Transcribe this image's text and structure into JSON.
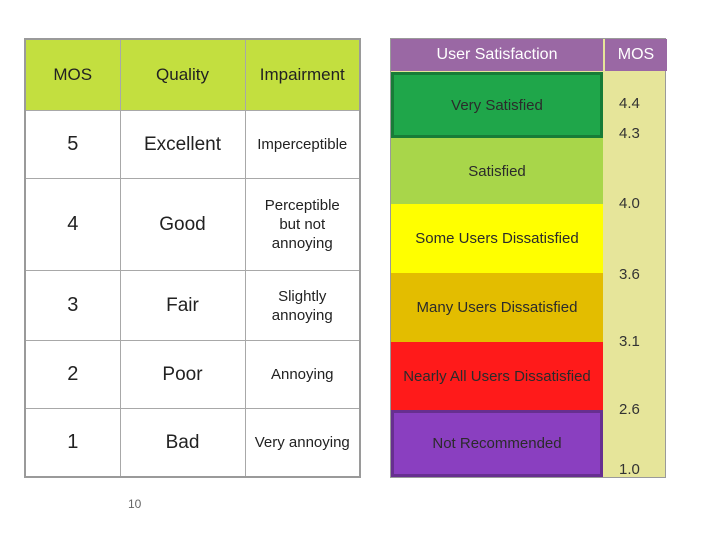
{
  "mos_table": {
    "headers": {
      "mos": "MOS",
      "quality": "Quality",
      "impairment": "Impairment"
    },
    "rows": [
      {
        "mos": "5",
        "quality": "Excellent",
        "impairment": "Imperceptible"
      },
      {
        "mos": "4",
        "quality": "Good",
        "impairment": "Perceptible but not annoying"
      },
      {
        "mos": "3",
        "quality": "Fair",
        "impairment": "Slightly annoying"
      },
      {
        "mos": "2",
        "quality": "Poor",
        "impairment": "Annoying"
      },
      {
        "mos": "1",
        "quality": "Bad",
        "impairment": "Very annoying"
      }
    ],
    "colors": {
      "header": "#c3df3f",
      "cell": "#ffffff"
    }
  },
  "satisfaction_scale": {
    "header_label": "User  Satisfaction",
    "header_mos": "MOS",
    "bands": [
      {
        "label": "Very Satisfied",
        "color": "#1fa64a"
      },
      {
        "label": "Satisfied",
        "color": "#a8d64a"
      },
      {
        "label": "Some Users Dissatisfied",
        "color": "#ffff00"
      },
      {
        "label": "Many Users Dissatisfied",
        "color": "#e3bd00"
      },
      {
        "label": "Nearly All Users Dissatisfied",
        "color": "#ff1a1a"
      },
      {
        "label": "Not Recommended",
        "color": "#8a3fc0"
      }
    ],
    "mos_ticks": [
      "4.4",
      "4.3",
      "4.0",
      "3.6",
      "3.1",
      "2.6",
      "1.0"
    ],
    "colors": {
      "header": "#9a68a4",
      "mos_column": "#e6e59a"
    }
  },
  "page_number": "10"
}
